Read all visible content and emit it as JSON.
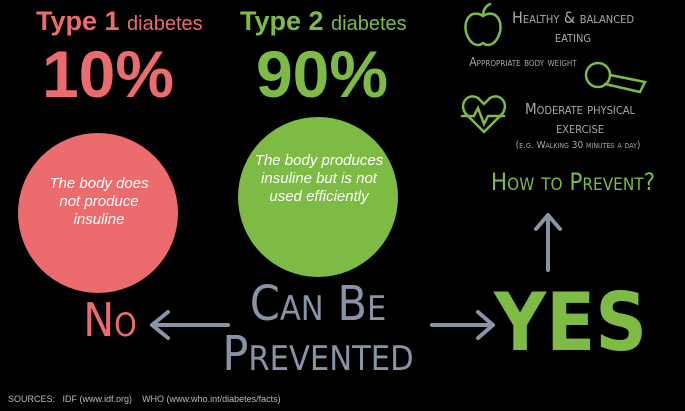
{
  "type1": {
    "label": "Type 1",
    "suffix": "diabetes",
    "percent": "10%",
    "description": "The body does not produce insuline"
  },
  "type2": {
    "label": "Type 2",
    "suffix": "diabetes",
    "percent": "90%",
    "description": "The body produces insuline but is not used efficiently"
  },
  "prevention": {
    "items": [
      "Healthy & balanced eating",
      "Appropriate body weight",
      "Moderate physical exercise"
    ],
    "note": "(e.g. Walking 30 minutes a day)",
    "question": "How to Prevent?"
  },
  "center": {
    "no": "No",
    "lines": [
      "Can Be",
      "Prevented"
    ],
    "yes": "YES"
  },
  "sources": {
    "label": "SOURCES:",
    "items": [
      "IDF (www.idf.org)",
      "WHO (www.who.int/diabetes/facts)"
    ]
  }
}
